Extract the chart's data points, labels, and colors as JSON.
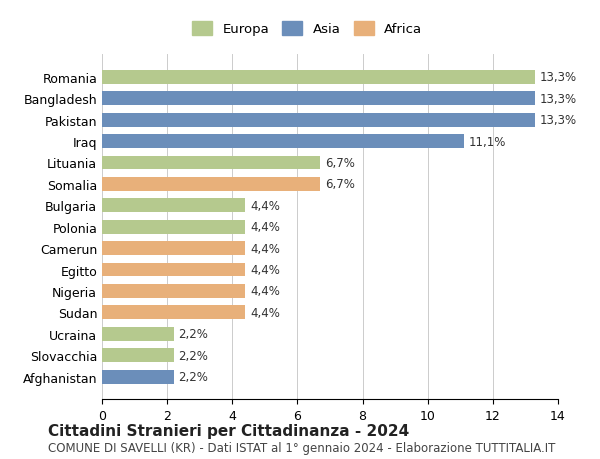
{
  "countries": [
    "Romania",
    "Bangladesh",
    "Pakistan",
    "Iraq",
    "Lituania",
    "Somalia",
    "Bulgaria",
    "Polonia",
    "Camerun",
    "Egitto",
    "Nigeria",
    "Sudan",
    "Ucraina",
    "Slovacchia",
    "Afghanistan"
  ],
  "values": [
    13.3,
    13.3,
    13.3,
    11.1,
    6.7,
    6.7,
    4.4,
    4.4,
    4.4,
    4.4,
    4.4,
    4.4,
    2.2,
    2.2,
    2.2
  ],
  "continents": [
    "Europa",
    "Asia",
    "Asia",
    "Asia",
    "Europa",
    "Africa",
    "Europa",
    "Europa",
    "Africa",
    "Africa",
    "Africa",
    "Africa",
    "Europa",
    "Europa",
    "Asia"
  ],
  "labels": [
    "13,3%",
    "13,3%",
    "13,3%",
    "11,1%",
    "6,7%",
    "6,7%",
    "4,4%",
    "4,4%",
    "4,4%",
    "4,4%",
    "4,4%",
    "4,4%",
    "2,2%",
    "2,2%",
    "2,2%"
  ],
  "colors": {
    "Europa": "#b5c98e",
    "Asia": "#6b8eba",
    "Africa": "#e8b07a"
  },
  "legend_order": [
    "Europa",
    "Asia",
    "Africa"
  ],
  "xlim": [
    0,
    14
  ],
  "xticks": [
    0,
    2,
    4,
    6,
    8,
    10,
    12,
    14
  ],
  "title": "Cittadini Stranieri per Cittadinanza - 2024",
  "subtitle": "COMUNE DI SAVELLI (KR) - Dati ISTAT al 1° gennaio 2024 - Elaborazione TUTTITALIA.IT",
  "background_color": "#ffffff",
  "bar_height": 0.65,
  "label_fontsize": 8.5,
  "title_fontsize": 11,
  "subtitle_fontsize": 8.5
}
